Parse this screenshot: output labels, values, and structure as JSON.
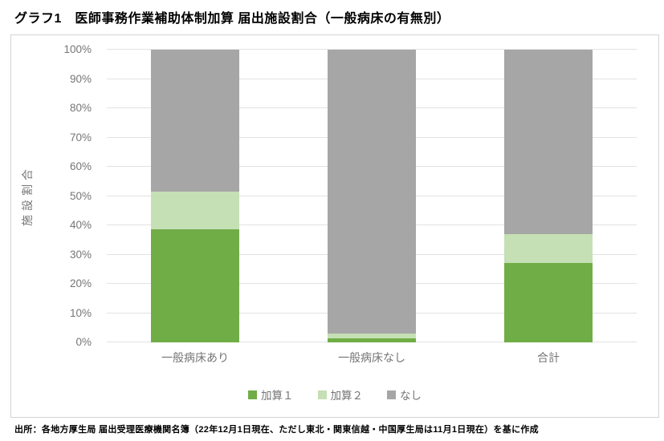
{
  "page": {
    "footer": "出所：各地方厚生局 届出受理医療機関名簿（22年12月1日現在、ただし東北・関東信越・中国厚生局は11月1日現在）を基に作成"
  },
  "chart_data": {
    "type": "bar",
    "stacked": true,
    "title": "グラフ1　医師事務作業補助体制加算 届出施設割合（一般病床の有無別）",
    "categories": [
      "一般病床あり",
      "一般病床なし",
      "合計"
    ],
    "series": [
      {
        "name": "加算１",
        "color": "#70AD47",
        "values": [
          38.5,
          1.5,
          27
        ]
      },
      {
        "name": "加算２",
        "color": "#C5E0B4",
        "values": [
          13,
          1.5,
          10
        ]
      },
      {
        "name": "なし",
        "color": "#A6A6A6",
        "values": [
          48.5,
          97,
          63
        ]
      }
    ],
    "ylabel": "施設割合",
    "xlabel": "",
    "ylim": [
      0,
      100
    ],
    "yticks": [
      "0%",
      "10%",
      "20%",
      "30%",
      "40%",
      "50%",
      "60%",
      "70%",
      "80%",
      "90%",
      "100%"
    ],
    "grid": true,
    "legend_position": "bottom",
    "colors": {
      "gridline": "#E2E2E2",
      "chart_border": "#D3D3D3",
      "axis_text": "#757575",
      "title_text": "#000000"
    }
  }
}
